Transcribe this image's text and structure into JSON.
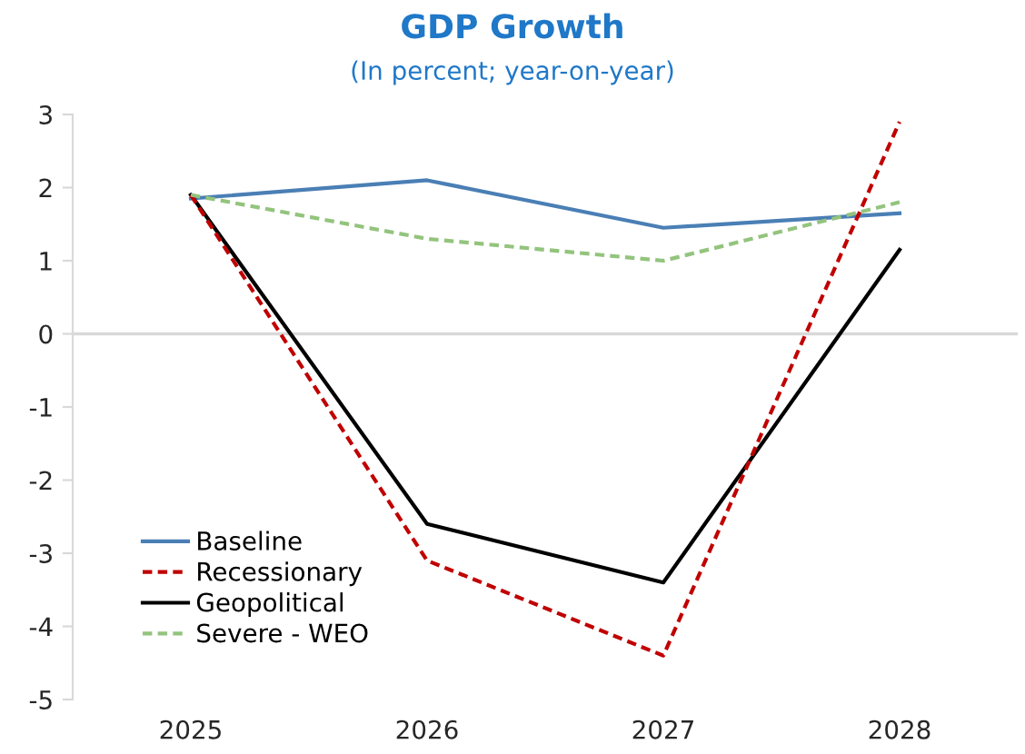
{
  "chart_data": {
    "type": "line",
    "title": "GDP Growth",
    "subtitle": "(In percent; year-on-year)",
    "categories": [
      "2025",
      "2026",
      "2027",
      "2028"
    ],
    "series": [
      {
        "name": "Baseline",
        "color": "#4a7fb5",
        "values": [
          1.85,
          2.1,
          1.45,
          1.65
        ],
        "line_style": "solid"
      },
      {
        "name": "Recessionary",
        "color": "#c00000",
        "values": [
          1.9,
          -3.1,
          -4.4,
          2.9
        ],
        "line_style": "dashed"
      },
      {
        "name": "Geopolitical",
        "color": "#000000",
        "values": [
          1.9,
          -2.6,
          -3.4,
          1.15
        ],
        "line_style": "solid"
      },
      {
        "name": "Severe - WEO",
        "color": "#93c47d",
        "values": [
          1.9,
          1.3,
          1.0,
          1.8
        ],
        "line_style": "dashed"
      }
    ],
    "ylim": [
      -5,
      3
    ],
    "yticks": [
      -5,
      -4,
      -3,
      -2,
      -1,
      0,
      1,
      2,
      3
    ],
    "ref_lines": [
      {
        "axis": "y",
        "value": 0,
        "color": "#d9d9d9"
      }
    ],
    "grid": false,
    "legend": "bottom left",
    "marker": "none"
  }
}
